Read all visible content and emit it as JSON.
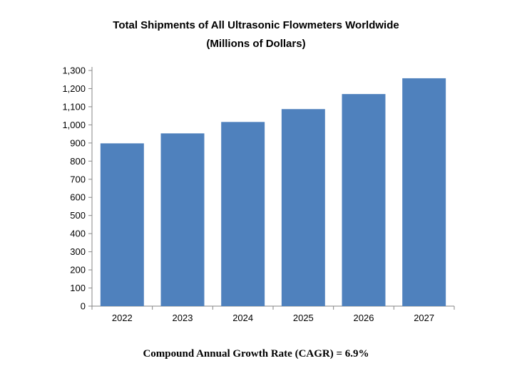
{
  "chart_data": {
    "type": "bar",
    "title": "Total Shipments of All Ultrasonic Flowmeters Worldwide",
    "subtitle": "(Millions of Dollars)",
    "categories": [
      "2022",
      "2023",
      "2024",
      "2025",
      "2026",
      "2027"
    ],
    "values": [
      898,
      953,
      1016,
      1087,
      1170,
      1257
    ],
    "ylim": [
      0,
      1300
    ],
    "yticks": [
      "0",
      "100",
      "200",
      "300",
      "400",
      "500",
      "600",
      "700",
      "800",
      "900",
      "1,000",
      "1,100",
      "1,200",
      "1,300"
    ],
    "grid": false,
    "bar_color": "#4F81BD",
    "annotation": "Compound Annual Growth Rate (CAGR) = 6.9%"
  }
}
